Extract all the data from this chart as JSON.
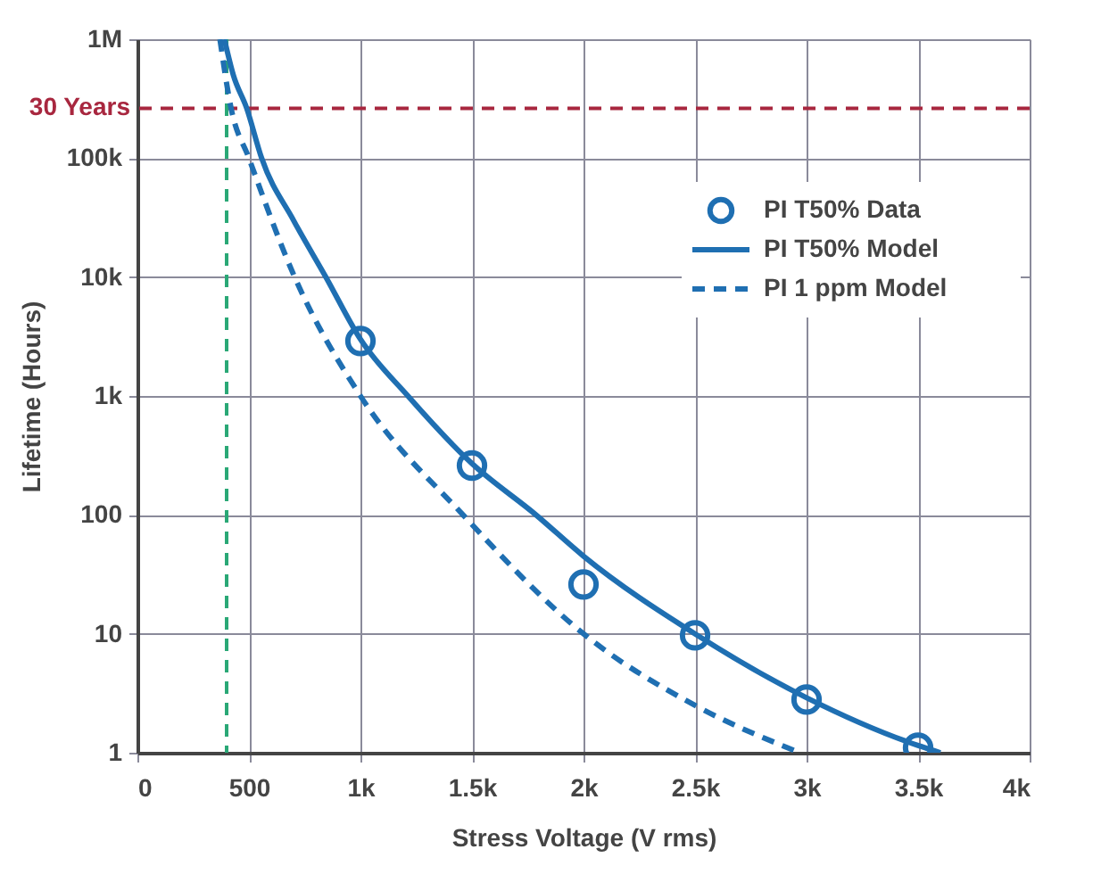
{
  "chart_data": {
    "type": "line",
    "xlabel": "Stress Voltage (V rms)",
    "ylabel": "Lifetime (Hours)",
    "xlim": [
      0,
      4000
    ],
    "ylim": [
      1,
      1000000
    ],
    "log": "y",
    "grid": true,
    "legend": "top right",
    "xticks": [
      0,
      500,
      {
        "value": 1000,
        "label": "1k"
      },
      {
        "value": 1500,
        "label": "1.5k"
      },
      {
        "value": 2000,
        "label": "2k"
      },
      {
        "value": 2500,
        "label": "2.5k"
      },
      {
        "value": 3000,
        "label": "3k"
      },
      {
        "value": 3500,
        "label": "3.5k"
      },
      {
        "value": 4000,
        "label": "4k"
      }
    ],
    "yticks": [
      1,
      10,
      100,
      {
        "value": 1000,
        "label": "1k"
      },
      {
        "value": 10000,
        "label": "10k"
      },
      {
        "value": 100000,
        "label": "100k"
      },
      {
        "value": 1000000,
        "label": "1M"
      }
    ],
    "series": [
      {
        "name": "PI T50% Data",
        "type": "scatter",
        "marker": "circle",
        "color": "#1f6fb2",
        "x": [
          1000,
          1500,
          2000,
          2500,
          3000,
          3500
        ],
        "values": [
          2900,
          260,
          26,
          9.7,
          2.8,
          1.1
        ]
      },
      {
        "name": "PI T50% Model",
        "line_style": "solid",
        "color": "#1f6fb2",
        "x": [
          390,
          430,
          490,
          557,
          700,
          845,
          1000,
          1213,
          1500,
          1787,
          2000,
          2500,
          3000,
          3500,
          3600
        ],
        "values": [
          1000000,
          500000,
          262800,
          100000,
          30000,
          10000,
          3000,
          1000,
          270,
          100,
          45,
          10,
          2.9,
          1.15,
          1
        ]
      },
      {
        "name": "PI 1 ppm Model",
        "line_style": "dashed",
        "color": "#1f6fb2",
        "x": [
          370,
          420,
          500,
          705,
          1000,
          1460,
          2000,
          2500,
          2970
        ],
        "values": [
          1000000,
          262800,
          100000,
          10000,
          1000,
          100,
          10,
          2.5,
          1
        ]
      }
    ],
    "ref_lines": [
      {
        "axis": "y",
        "value": 262800,
        "label": "30 Years",
        "color": "#a8273f",
        "line_style": "dashed"
      },
      {
        "axis": "x",
        "value": 400,
        "color": "#2aa876",
        "line_style": "dashed"
      }
    ]
  }
}
